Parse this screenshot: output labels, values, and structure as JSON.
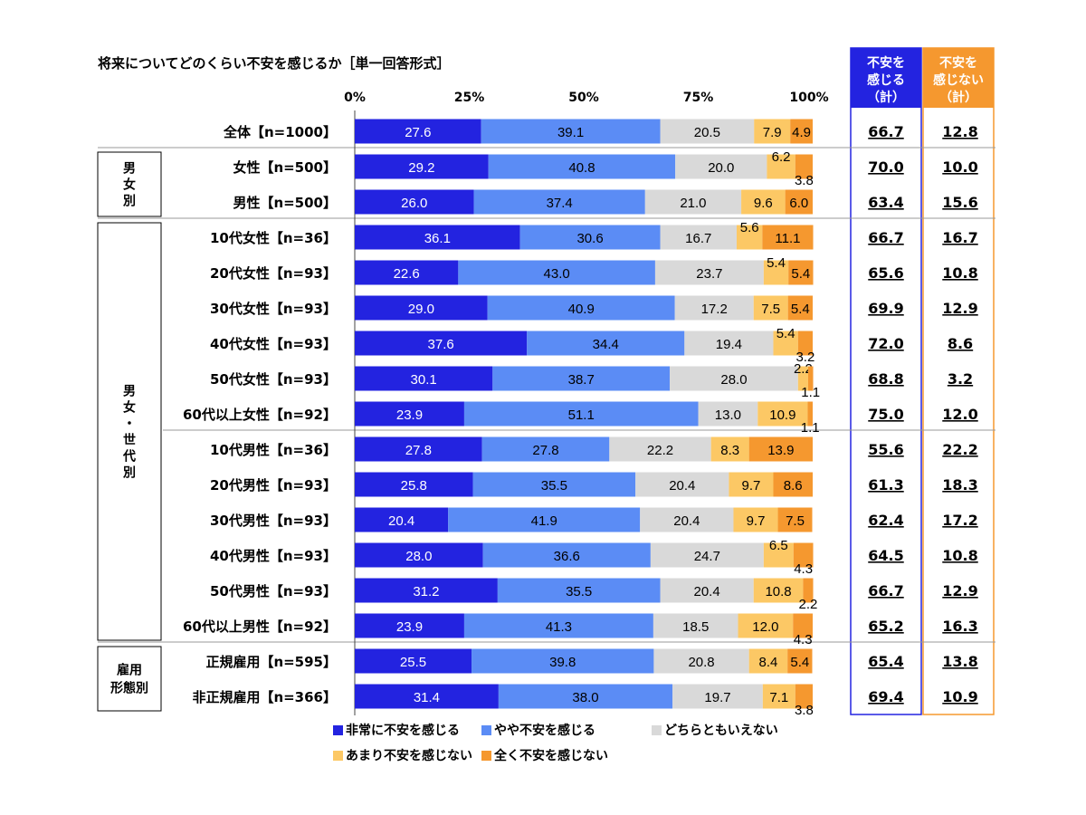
{
  "chart_data": {
    "type": "bar",
    "orientation": "horizontal",
    "stacked": true,
    "title": "将来についてどのくらい不安を感じるか［単一回答形式］",
    "ticks": [
      "0%",
      "25%",
      "50%",
      "75%",
      "100%"
    ],
    "xlim": [
      0,
      100
    ],
    "categories": [
      "全体【n=1000】",
      "女性【n=500】",
      "男性【n=500】",
      "10代女性【n=36】",
      "20代女性【n=93】",
      "30代女性【n=93】",
      "40代女性【n=93】",
      "50代女性【n=93】",
      "60代以上女性【n=92】",
      "10代男性【n=36】",
      "20代男性【n=93】",
      "30代男性【n=93】",
      "40代男性【n=93】",
      "50代男性【n=93】",
      "60代以上男性【n=92】",
      "正規雇用【n=595】",
      "非正規雇用【n=366】"
    ],
    "series": [
      {
        "name": "非常に不安を感じる",
        "color": "#2323e0",
        "values": [
          27.6,
          29.2,
          26.0,
          36.1,
          22.6,
          29.0,
          37.6,
          30.1,
          23.9,
          27.8,
          25.8,
          20.4,
          28.0,
          31.2,
          23.9,
          25.5,
          31.4
        ]
      },
      {
        "name": "やや不安を感じる",
        "color": "#5b8cf5",
        "values": [
          39.1,
          40.8,
          37.4,
          30.6,
          43.0,
          40.9,
          34.4,
          38.7,
          51.1,
          27.8,
          35.5,
          41.9,
          36.6,
          35.5,
          41.3,
          39.8,
          38.0
        ]
      },
      {
        "name": "どちらともいえない",
        "color": "#d9d9d9",
        "values": [
          20.5,
          20.0,
          21.0,
          16.7,
          23.7,
          17.2,
          19.4,
          28.0,
          13.0,
          22.2,
          20.4,
          20.4,
          24.7,
          20.4,
          18.5,
          20.8,
          19.7
        ]
      },
      {
        "name": "あまり不安を感じない",
        "color": "#fcc865",
        "values": [
          7.9,
          6.2,
          9.6,
          5.6,
          5.4,
          7.5,
          5.4,
          2.2,
          10.9,
          8.3,
          9.7,
          9.7,
          6.5,
          10.8,
          12.0,
          8.4,
          7.1
        ]
      },
      {
        "name": "全く不安を感じない",
        "color": "#f5982f",
        "values": [
          4.9,
          3.8,
          6.0,
          11.1,
          5.4,
          5.4,
          3.2,
          1.1,
          1.1,
          13.9,
          8.6,
          7.5,
          4.3,
          2.2,
          4.3,
          5.4,
          3.8
        ]
      }
    ],
    "totals": [
      {
        "header": [
          "不安を",
          "感じる",
          "（計）"
        ],
        "header_bg": "#2323e0",
        "border": "#2323e0",
        "values": [
          "66.7",
          "70.0",
          "63.4",
          "66.7",
          "65.6",
          "69.9",
          "72.0",
          "68.8",
          "75.0",
          "55.6",
          "61.3",
          "62.4",
          "64.5",
          "66.7",
          "65.2",
          "65.4",
          "69.4"
        ]
      },
      {
        "header": [
          "不安を",
          "感じない",
          "（計）"
        ],
        "header_bg": "#f5982f",
        "border": "#f5982f",
        "values": [
          "12.8",
          "10.0",
          "15.6",
          "16.7",
          "10.8",
          "12.9",
          "8.6",
          "3.2",
          "12.0",
          "22.2",
          "18.3",
          "17.2",
          "10.8",
          "12.9",
          "16.3",
          "13.8",
          "10.9"
        ]
      }
    ],
    "groups": [
      {
        "label": [
          "男",
          "女",
          "別"
        ],
        "rows": [
          1,
          2
        ]
      },
      {
        "label": [
          "男",
          "女",
          "・",
          "世",
          "代",
          "別"
        ],
        "rows": [
          3,
          14
        ]
      },
      {
        "label": [
          "雇用",
          "形態別"
        ],
        "rows": [
          15,
          16
        ]
      }
    ],
    "legend": {
      "placement": "bottom"
    }
  }
}
